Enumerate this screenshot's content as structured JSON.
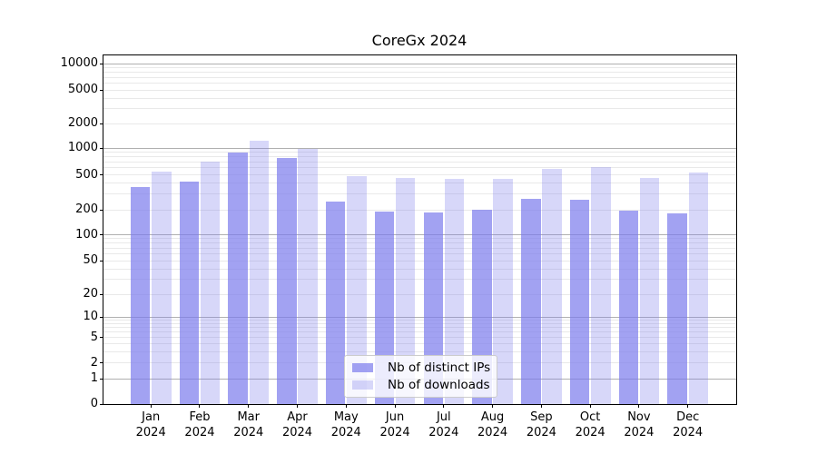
{
  "chart_data": {
    "type": "bar",
    "title": "CoreGx 2024",
    "year_label": "2024",
    "months": [
      "Jan",
      "Feb",
      "Mar",
      "Apr",
      "May",
      "Jun",
      "Jul",
      "Aug",
      "Sep",
      "Oct",
      "Nov",
      "Dec"
    ],
    "series": [
      {
        "name": "Nb of distinct IPs",
        "color": "rgba(122,122,236,0.7)",
        "values": [
          365,
          415,
          890,
          770,
          250,
          190,
          186,
          198,
          267,
          258,
          195,
          182
        ]
      },
      {
        "name": "Nb of downloads",
        "color": "rgba(122,122,236,0.3)",
        "values": [
          540,
          700,
          1220,
          980,
          483,
          465,
          445,
          445,
          590,
          605,
          455,
          525
        ]
      }
    ],
    "yscale": "symlog",
    "ytick_labels": [
      "0",
      "1",
      "2",
      "5",
      "10",
      "20",
      "50",
      "100",
      "200",
      "500",
      "1000",
      "2000",
      "5000",
      "10000"
    ],
    "ylim": [
      0,
      13000
    ],
    "xlabel": "",
    "ylabel": "",
    "grid": "both",
    "legend_position": "lower center",
    "colors": {
      "bar_base": "#7a7aec",
      "major_grid": "#b0b0b0",
      "minor_grid": "#e9e9e9",
      "spine": "#000000"
    }
  }
}
